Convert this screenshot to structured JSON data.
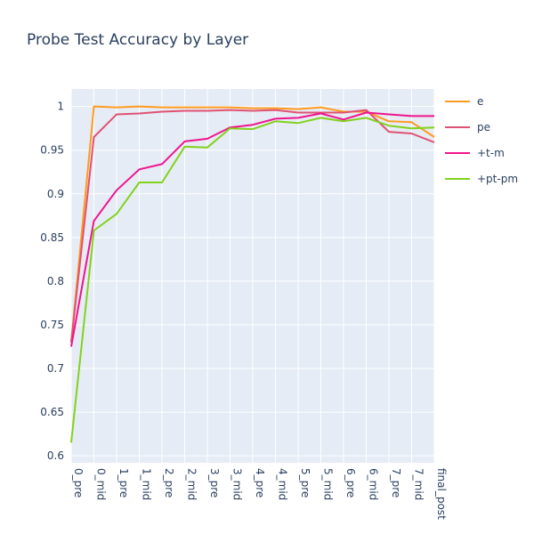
{
  "chart_data": {
    "type": "line",
    "title": "Probe Test Accuracy by Layer",
    "xlabel": "",
    "ylabel": "",
    "categories": [
      "0_pre",
      "0_mid",
      "1_pre",
      "1_mid",
      "2_pre",
      "2_mid",
      "3_pre",
      "3_mid",
      "4_pre",
      "4_mid",
      "5_pre",
      "5_mid",
      "6_pre",
      "6_mid",
      "7_pre",
      "7_mid",
      "final_post"
    ],
    "ylim": [
      0.592,
      1.02
    ],
    "yticks": [
      0.6,
      0.65,
      0.7,
      0.75,
      0.8,
      0.85,
      0.9,
      0.95,
      1
    ],
    "ytick_labels": [
      "0.6",
      "0.65",
      "0.7",
      "0.75",
      "0.8",
      "0.85",
      "0.9",
      "0.95",
      "1"
    ],
    "grid": true,
    "legend_position": "right",
    "background": "#e5ecf6",
    "series": [
      {
        "name": "e",
        "color": "#ff9b20",
        "values": [
          0.73,
          1.0,
          0.999,
          1.0,
          0.999,
          0.999,
          0.999,
          0.999,
          0.998,
          0.998,
          0.997,
          0.999,
          0.994,
          0.994,
          0.983,
          0.982,
          0.965
        ]
      },
      {
        "name": "pe",
        "color": "#e05272",
        "values": [
          0.73,
          0.965,
          0.991,
          0.992,
          0.994,
          0.995,
          0.995,
          0.996,
          0.995,
          0.996,
          0.993,
          0.993,
          0.993,
          0.996,
          0.971,
          0.969,
          0.959
        ]
      },
      {
        "name": "+t-m",
        "color": "#f0148c",
        "values": [
          0.725,
          0.869,
          0.904,
          0.928,
          0.934,
          0.96,
          0.963,
          0.976,
          0.979,
          0.986,
          0.987,
          0.992,
          0.985,
          0.993,
          0.991,
          0.989,
          0.989
        ]
      },
      {
        "name": "+pt-pm",
        "color": "#82d21e",
        "values": [
          0.615,
          0.858,
          0.877,
          0.913,
          0.913,
          0.954,
          0.953,
          0.975,
          0.974,
          0.983,
          0.981,
          0.987,
          0.983,
          0.987,
          0.978,
          0.975,
          0.976
        ]
      }
    ]
  }
}
